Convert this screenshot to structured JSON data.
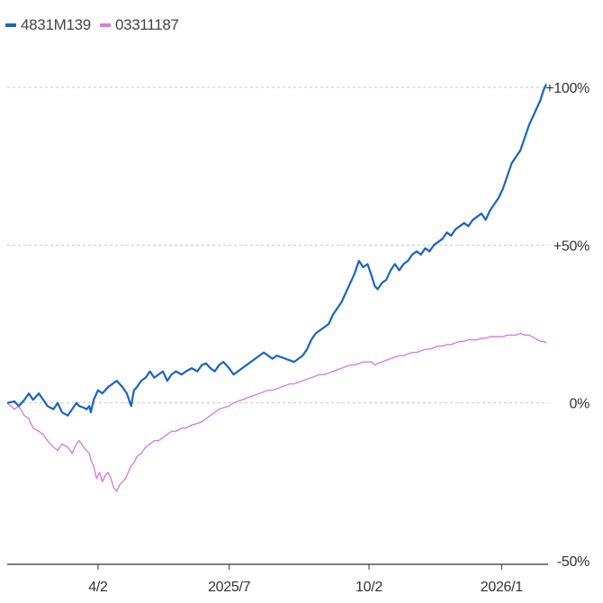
{
  "chart_data": {
    "type": "line",
    "title": "",
    "xlabel": "",
    "ylabel": "",
    "ylim": [
      -50,
      100
    ],
    "x_tick_labels": [
      "4/2",
      "2025/7",
      "10/2",
      "2026/1"
    ],
    "y_ticks": [
      {
        "label": "+100%",
        "value": 100
      },
      {
        "label": "+50%",
        "value": 50
      },
      {
        "label": "0%",
        "value": 0
      },
      {
        "label": "-50%",
        "value": -50
      }
    ],
    "x_range_days": [
      0,
      374
    ],
    "x_tick_days": [
      63,
      154,
      251,
      343
    ],
    "series": [
      {
        "name": "4831M139",
        "color": "#1a63c4",
        "points": [
          [
            0,
            0
          ],
          [
            5,
            0.5
          ],
          [
            8,
            -1
          ],
          [
            12,
            1
          ],
          [
            15,
            3
          ],
          [
            18,
            1
          ],
          [
            22,
            3
          ],
          [
            25,
            1
          ],
          [
            28,
            -1
          ],
          [
            32,
            -2
          ],
          [
            35,
            0
          ],
          [
            38,
            -3
          ],
          [
            42,
            -4
          ],
          [
            45,
            -2
          ],
          [
            48,
            0
          ],
          [
            50,
            -1
          ],
          [
            53,
            -1.5
          ],
          [
            55,
            -2
          ],
          [
            57,
            -1
          ],
          [
            58,
            -3
          ],
          [
            60,
            1
          ],
          [
            63,
            4
          ],
          [
            66,
            3
          ],
          [
            70,
            5
          ],
          [
            73,
            6
          ],
          [
            76,
            7
          ],
          [
            80,
            5
          ],
          [
            83,
            3
          ],
          [
            86,
            -1
          ],
          [
            88,
            4
          ],
          [
            90,
            5
          ],
          [
            93,
            7
          ],
          [
            96,
            8
          ],
          [
            99,
            10
          ],
          [
            102,
            8
          ],
          [
            105,
            9
          ],
          [
            108,
            10
          ],
          [
            111,
            7
          ],
          [
            114,
            9
          ],
          [
            117,
            10
          ],
          [
            121,
            9
          ],
          [
            124,
            10
          ],
          [
            128,
            11
          ],
          [
            132,
            10
          ],
          [
            135,
            12
          ],
          [
            138,
            12.5
          ],
          [
            141,
            11
          ],
          [
            144,
            10
          ],
          [
            147,
            12
          ],
          [
            150,
            13
          ],
          [
            154,
            11
          ],
          [
            157,
            9
          ],
          [
            160,
            10
          ],
          [
            163,
            11
          ],
          [
            166,
            12
          ],
          [
            169,
            13
          ],
          [
            172,
            14
          ],
          [
            175,
            15
          ],
          [
            178,
            16
          ],
          [
            181,
            15
          ],
          [
            184,
            14
          ],
          [
            187,
            15
          ],
          [
            190,
            14.5
          ],
          [
            193,
            14
          ],
          [
            196,
            13.5
          ],
          [
            199,
            13
          ],
          [
            202,
            14
          ],
          [
            205,
            15
          ],
          [
            208,
            17
          ],
          [
            211,
            20
          ],
          [
            214,
            22
          ],
          [
            217,
            23
          ],
          [
            220,
            24
          ],
          [
            223,
            25
          ],
          [
            226,
            28
          ],
          [
            229,
            30
          ],
          [
            232,
            32
          ],
          [
            235,
            35
          ],
          [
            238,
            38
          ],
          [
            241,
            41
          ],
          [
            244,
            45
          ],
          [
            247,
            43
          ],
          [
            250,
            44
          ],
          [
            253,
            40
          ],
          [
            255,
            37
          ],
          [
            257,
            36
          ],
          [
            260,
            38
          ],
          [
            263,
            39
          ],
          [
            266,
            42
          ],
          [
            269,
            44
          ],
          [
            272,
            42
          ],
          [
            275,
            44
          ],
          [
            278,
            45
          ],
          [
            281,
            47
          ],
          [
            284,
            48
          ],
          [
            287,
            47
          ],
          [
            290,
            49
          ],
          [
            293,
            48
          ],
          [
            296,
            50
          ],
          [
            299,
            51
          ],
          [
            302,
            52
          ],
          [
            305,
            54
          ],
          [
            308,
            53
          ],
          [
            311,
            55
          ],
          [
            314,
            56
          ],
          [
            317,
            57
          ],
          [
            320,
            56
          ],
          [
            323,
            58
          ],
          [
            326,
            59
          ],
          [
            329,
            60
          ],
          [
            332,
            58
          ],
          [
            335,
            61
          ],
          [
            338,
            63
          ],
          [
            341,
            65
          ],
          [
            344,
            68
          ],
          [
            347,
            72
          ],
          [
            350,
            76
          ],
          [
            353,
            78
          ],
          [
            356,
            80
          ],
          [
            359,
            84
          ],
          [
            362,
            88
          ],
          [
            364,
            90
          ],
          [
            366,
            92
          ],
          [
            368,
            94
          ],
          [
            370,
            96
          ],
          [
            372,
            99
          ],
          [
            374,
            101
          ]
        ]
      },
      {
        "name": "03311187",
        "color": "#d77ee0",
        "points": [
          [
            0,
            0
          ],
          [
            5,
            -2
          ],
          [
            8,
            -1
          ],
          [
            12,
            -4
          ],
          [
            15,
            -5
          ],
          [
            18,
            -8
          ],
          [
            22,
            -9
          ],
          [
            25,
            -10
          ],
          [
            28,
            -12
          ],
          [
            32,
            -14
          ],
          [
            35,
            -15
          ],
          [
            38,
            -13
          ],
          [
            42,
            -14
          ],
          [
            45,
            -16
          ],
          [
            48,
            -13
          ],
          [
            50,
            -12
          ],
          [
            53,
            -14
          ],
          [
            55,
            -15
          ],
          [
            57,
            -16
          ],
          [
            58,
            -18
          ],
          [
            60,
            -20
          ],
          [
            62,
            -24
          ],
          [
            64,
            -22
          ],
          [
            66,
            -25
          ],
          [
            68,
            -23
          ],
          [
            70,
            -22
          ],
          [
            72,
            -24
          ],
          [
            74,
            -27
          ],
          [
            76,
            -28
          ],
          [
            78,
            -26
          ],
          [
            80,
            -25
          ],
          [
            82,
            -24
          ],
          [
            84,
            -22
          ],
          [
            86,
            -20
          ],
          [
            88,
            -19
          ],
          [
            90,
            -17
          ],
          [
            93,
            -16
          ],
          [
            96,
            -14
          ],
          [
            99,
            -13
          ],
          [
            102,
            -12
          ],
          [
            105,
            -12
          ],
          [
            108,
            -11
          ],
          [
            111,
            -10
          ],
          [
            114,
            -9
          ],
          [
            117,
            -9
          ],
          [
            121,
            -8
          ],
          [
            124,
            -8
          ],
          [
            128,
            -7
          ],
          [
            132,
            -6.5
          ],
          [
            135,
            -6
          ],
          [
            138,
            -5
          ],
          [
            141,
            -4
          ],
          [
            144,
            -3
          ],
          [
            147,
            -2
          ],
          [
            150,
            -1.5
          ],
          [
            154,
            -1
          ],
          [
            157,
            0
          ],
          [
            160,
            0.5
          ],
          [
            163,
            1
          ],
          [
            166,
            1.5
          ],
          [
            169,
            2
          ],
          [
            172,
            2.5
          ],
          [
            175,
            3
          ],
          [
            178,
            3.5
          ],
          [
            181,
            4
          ],
          [
            184,
            4
          ],
          [
            187,
            4.5
          ],
          [
            190,
            5
          ],
          [
            193,
            5.5
          ],
          [
            196,
            6
          ],
          [
            199,
            6
          ],
          [
            202,
            6.5
          ],
          [
            205,
            7
          ],
          [
            208,
            7.5
          ],
          [
            211,
            8
          ],
          [
            214,
            8.5
          ],
          [
            217,
            9
          ],
          [
            220,
            9
          ],
          [
            223,
            9.5
          ],
          [
            226,
            10
          ],
          [
            229,
            10.5
          ],
          [
            232,
            11
          ],
          [
            235,
            11.5
          ],
          [
            238,
            12
          ],
          [
            241,
            12
          ],
          [
            244,
            12.5
          ],
          [
            247,
            13
          ],
          [
            250,
            13
          ],
          [
            253,
            13
          ],
          [
            255,
            12
          ],
          [
            257,
            12.5
          ],
          [
            260,
            13
          ],
          [
            263,
            13.5
          ],
          [
            266,
            14
          ],
          [
            269,
            14.5
          ],
          [
            272,
            15
          ],
          [
            275,
            15
          ],
          [
            278,
            15.5
          ],
          [
            281,
            16
          ],
          [
            284,
            16
          ],
          [
            287,
            16.5
          ],
          [
            290,
            17
          ],
          [
            293,
            17
          ],
          [
            296,
            17.5
          ],
          [
            299,
            18
          ],
          [
            302,
            18
          ],
          [
            305,
            18.5
          ],
          [
            308,
            18.5
          ],
          [
            311,
            19
          ],
          [
            314,
            19.5
          ],
          [
            317,
            19.5
          ],
          [
            320,
            20
          ],
          [
            323,
            20
          ],
          [
            326,
            20
          ],
          [
            329,
            20.5
          ],
          [
            332,
            20.5
          ],
          [
            335,
            21
          ],
          [
            338,
            21
          ],
          [
            341,
            21
          ],
          [
            344,
            21
          ],
          [
            347,
            21.5
          ],
          [
            350,
            21.5
          ],
          [
            353,
            21.5
          ],
          [
            356,
            22
          ],
          [
            359,
            21.5
          ],
          [
            362,
            21.5
          ],
          [
            364,
            21
          ],
          [
            366,
            20.5
          ],
          [
            368,
            20
          ],
          [
            370,
            19.5
          ],
          [
            372,
            19.5
          ],
          [
            374,
            19
          ]
        ]
      }
    ]
  }
}
